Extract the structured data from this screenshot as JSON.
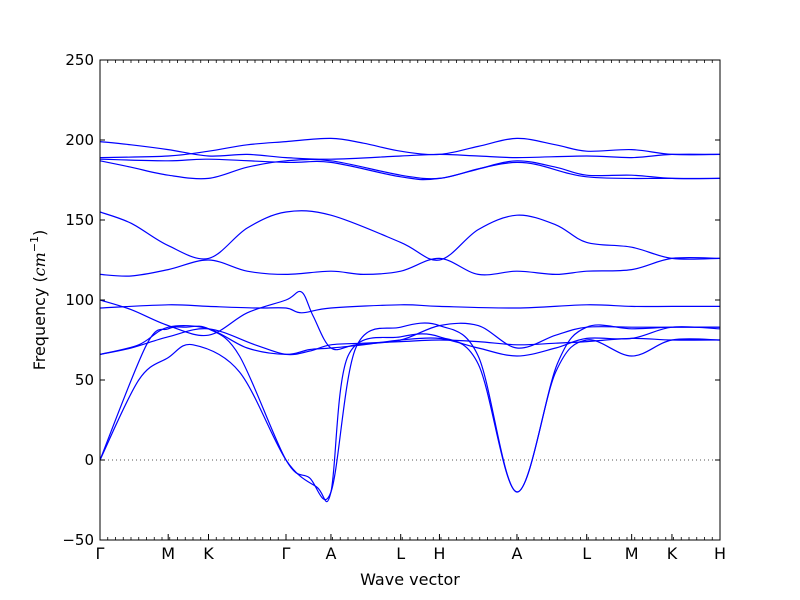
{
  "chart_data": {
    "type": "line",
    "xlabel": "Wave vector",
    "ylabel": "Frequency",
    "ylabel_unit_base": "cm",
    "ylabel_unit_exponent": "−1",
    "ylim": [
      -50,
      250
    ],
    "yticks": [
      -50,
      0,
      50,
      100,
      150,
      200,
      250
    ],
    "xlim": [
      0,
      8
    ],
    "xticks": [
      {
        "pos": 0.0,
        "label": "Γ"
      },
      {
        "pos": 0.88,
        "label": "M"
      },
      {
        "pos": 1.4,
        "label": "K"
      },
      {
        "pos": 2.4,
        "label": "Γ"
      },
      {
        "pos": 2.98,
        "label": "A"
      },
      {
        "pos": 3.88,
        "label": "L"
      },
      {
        "pos": 4.38,
        "label": "H"
      },
      {
        "pos": 5.38,
        "label": "A"
      },
      {
        "pos": 6.28,
        "label": "L"
      },
      {
        "pos": 6.86,
        "label": "M"
      },
      {
        "pos": 7.38,
        "label": "K"
      },
      {
        "pos": 8.0,
        "label": "H"
      }
    ],
    "grid": false,
    "zero_line": true,
    "line_color": "#0000ff",
    "zero_line_color": "#555555",
    "series": [
      {
        "points": [
          [
            0,
            0
          ],
          [
            0.5,
            50
          ],
          [
            0.88,
            64
          ],
          [
            1.2,
            72
          ],
          [
            1.8,
            55
          ],
          [
            2.4,
            0
          ],
          [
            2.8,
            -17
          ],
          [
            2.98,
            -20
          ],
          [
            3.2,
            65
          ],
          [
            3.88,
            77
          ],
          [
            4.38,
            77
          ],
          [
            4.88,
            60
          ],
          [
            5.38,
            -20
          ],
          [
            5.88,
            55
          ],
          [
            6.28,
            75
          ],
          [
            6.86,
            65
          ],
          [
            7.38,
            75
          ],
          [
            8,
            75
          ]
        ]
      },
      {
        "points": [
          [
            0,
            0
          ],
          [
            0.6,
            72
          ],
          [
            0.88,
            82
          ],
          [
            1.1,
            83
          ],
          [
            1.4,
            82
          ],
          [
            1.8,
            65
          ],
          [
            2.4,
            0
          ],
          [
            2.7,
            -11
          ],
          [
            2.98,
            -20
          ],
          [
            3.3,
            70
          ],
          [
            3.88,
            83
          ],
          [
            4.38,
            84
          ],
          [
            4.88,
            65
          ],
          [
            5.38,
            -20
          ],
          [
            5.9,
            60
          ],
          [
            6.28,
            83
          ],
          [
            6.86,
            82
          ],
          [
            7.38,
            83
          ],
          [
            8,
            83
          ]
        ]
      },
      {
        "points": [
          [
            0,
            66
          ],
          [
            0.5,
            72
          ],
          [
            0.88,
            83
          ],
          [
            1.4,
            82
          ],
          [
            1.9,
            70
          ],
          [
            2.4,
            66
          ],
          [
            2.7,
            69
          ],
          [
            2.98,
            70
          ],
          [
            3.4,
            72
          ],
          [
            3.88,
            75
          ],
          [
            4.38,
            76
          ],
          [
            4.88,
            70
          ],
          [
            5.38,
            65
          ],
          [
            5.88,
            70
          ],
          [
            6.28,
            76
          ],
          [
            6.86,
            76
          ],
          [
            7.38,
            83
          ],
          [
            8,
            82
          ]
        ]
      },
      {
        "points": [
          [
            0,
            66
          ],
          [
            0.4,
            70
          ],
          [
            0.88,
            77
          ],
          [
            1.4,
            82
          ],
          [
            2,
            72
          ],
          [
            2.4,
            66
          ],
          [
            2.7,
            68
          ],
          [
            2.98,
            72
          ],
          [
            3.4,
            73
          ],
          [
            3.88,
            74
          ],
          [
            4.38,
            75
          ],
          [
            4.88,
            74
          ],
          [
            5.38,
            72
          ],
          [
            5.88,
            73
          ],
          [
            6.28,
            74
          ],
          [
            6.86,
            76
          ],
          [
            7.38,
            75
          ],
          [
            8,
            75
          ]
        ]
      },
      {
        "points": [
          [
            0,
            100
          ],
          [
            0.4,
            94
          ],
          [
            0.88,
            84
          ],
          [
            1.4,
            78
          ],
          [
            1.9,
            92
          ],
          [
            2.4,
            100
          ],
          [
            2.6,
            105
          ],
          [
            2.75,
            90
          ],
          [
            2.98,
            70
          ],
          [
            3.3,
            72
          ],
          [
            3.88,
            75
          ],
          [
            4.38,
            84
          ],
          [
            4.88,
            84
          ],
          [
            5.38,
            70
          ],
          [
            5.88,
            78
          ],
          [
            6.28,
            83
          ],
          [
            6.86,
            83
          ],
          [
            7.38,
            83
          ],
          [
            8,
            83
          ]
        ]
      },
      {
        "points": [
          [
            0,
            95
          ],
          [
            0.88,
            97
          ],
          [
            1.4,
            96
          ],
          [
            2,
            95
          ],
          [
            2.4,
            95
          ],
          [
            2.6,
            92
          ],
          [
            2.98,
            95
          ],
          [
            3.88,
            97
          ],
          [
            4.38,
            96
          ],
          [
            5.38,
            95
          ],
          [
            6.28,
            97
          ],
          [
            6.86,
            96
          ],
          [
            7.38,
            96
          ],
          [
            8,
            96
          ]
        ]
      },
      {
        "points": [
          [
            0,
            155
          ],
          [
            0.4,
            148
          ],
          [
            0.88,
            134
          ],
          [
            1.4,
            126
          ],
          [
            1.9,
            145
          ],
          [
            2.4,
            155
          ],
          [
            2.98,
            153
          ],
          [
            3.88,
            136
          ],
          [
            4.38,
            125
          ],
          [
            4.88,
            144
          ],
          [
            5.38,
            153
          ],
          [
            5.88,
            147
          ],
          [
            6.28,
            136
          ],
          [
            6.86,
            133
          ],
          [
            7.38,
            126
          ],
          [
            8,
            126
          ]
        ]
      },
      {
        "points": [
          [
            0,
            116
          ],
          [
            0.4,
            115
          ],
          [
            0.88,
            119
          ],
          [
            1.4,
            125
          ],
          [
            1.9,
            118
          ],
          [
            2.4,
            116
          ],
          [
            2.98,
            118
          ],
          [
            3.4,
            116
          ],
          [
            3.88,
            118
          ],
          [
            4.38,
            126
          ],
          [
            4.88,
            116
          ],
          [
            5.38,
            118
          ],
          [
            5.88,
            116
          ],
          [
            6.28,
            118
          ],
          [
            6.86,
            119
          ],
          [
            7.38,
            126
          ],
          [
            8,
            126
          ]
        ]
      },
      {
        "points": [
          [
            0,
            187
          ],
          [
            0.4,
            183
          ],
          [
            0.88,
            178
          ],
          [
            1.4,
            176
          ],
          [
            1.9,
            183
          ],
          [
            2.4,
            187
          ],
          [
            2.98,
            187
          ],
          [
            3.88,
            178
          ],
          [
            4.38,
            176
          ],
          [
            4.88,
            182
          ],
          [
            5.38,
            187
          ],
          [
            5.88,
            183
          ],
          [
            6.28,
            178
          ],
          [
            6.86,
            178
          ],
          [
            7.38,
            176
          ],
          [
            8,
            176
          ]
        ]
      },
      {
        "points": [
          [
            0,
            188
          ],
          [
            0.88,
            187
          ],
          [
            1.4,
            188
          ],
          [
            2.4,
            186
          ],
          [
            2.98,
            186
          ],
          [
            3.88,
            177
          ],
          [
            4.38,
            176
          ],
          [
            5.38,
            186
          ],
          [
            6.28,
            177
          ],
          [
            7.38,
            176
          ],
          [
            8,
            176
          ]
        ]
      },
      {
        "points": [
          [
            0,
            199
          ],
          [
            0.4,
            197
          ],
          [
            0.88,
            194
          ],
          [
            1.4,
            190
          ],
          [
            1.9,
            191
          ],
          [
            2.4,
            189
          ],
          [
            2.98,
            188
          ],
          [
            3.88,
            190
          ],
          [
            4.38,
            191
          ],
          [
            4.88,
            190
          ],
          [
            5.38,
            189
          ],
          [
            6.28,
            190
          ],
          [
            6.86,
            189
          ],
          [
            7.38,
            191
          ],
          [
            8,
            191
          ]
        ]
      },
      {
        "points": [
          [
            0,
            189
          ],
          [
            0.88,
            190
          ],
          [
            1.4,
            193
          ],
          [
            1.9,
            197
          ],
          [
            2.4,
            199
          ],
          [
            2.98,
            201
          ],
          [
            3.4,
            198
          ],
          [
            3.88,
            193
          ],
          [
            4.38,
            191
          ],
          [
            4.88,
            196
          ],
          [
            5.38,
            201
          ],
          [
            5.88,
            197
          ],
          [
            6.28,
            193
          ],
          [
            6.86,
            194
          ],
          [
            7.38,
            191
          ],
          [
            8,
            191
          ]
        ]
      }
    ]
  }
}
